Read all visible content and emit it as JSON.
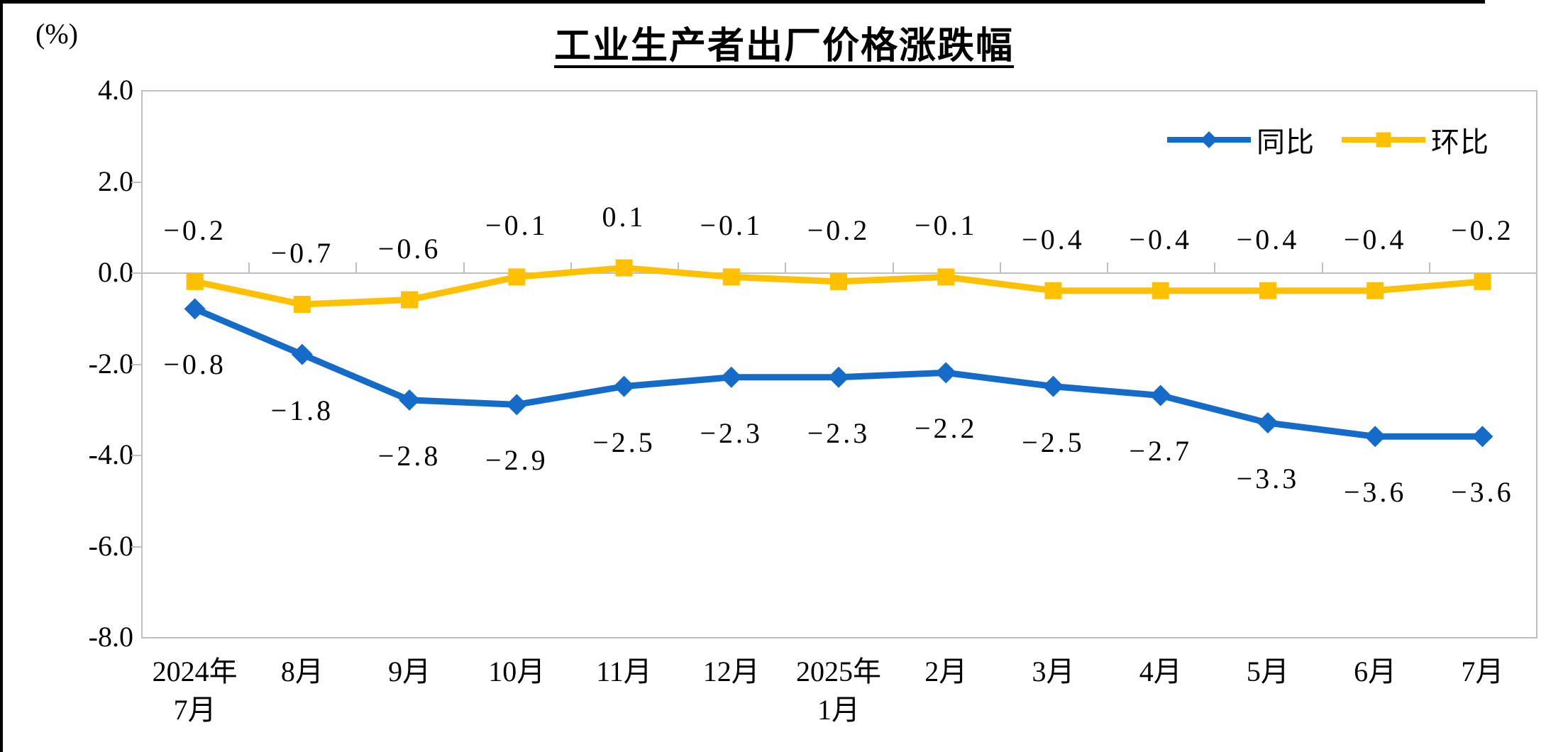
{
  "chart_data": {
    "type": "line",
    "title": "工业生产者出厂价格涨跌幅",
    "unit_label": "(%)",
    "categories": [
      "2024年\n7月",
      "8月",
      "9月",
      "10月",
      "11月",
      "12月",
      "2025年\n1月",
      "2月",
      "3月",
      "4月",
      "5月",
      "6月",
      "7月"
    ],
    "series": [
      {
        "name": "同比",
        "color": "#156CC8",
        "marker": "diamond",
        "values": [
          -0.8,
          -1.8,
          -2.8,
          -2.9,
          -2.5,
          -2.3,
          -2.3,
          -2.2,
          -2.5,
          -2.7,
          -3.3,
          -3.6,
          -3.6
        ],
        "labels": [
          "-0.8",
          "-1.8",
          "-2.8",
          "-2.9",
          "-2.5",
          "-2.3",
          "-2.3",
          "-2.2",
          "-2.5",
          "-2.7",
          "-3.3",
          "-3.6",
          "-3.6"
        ]
      },
      {
        "name": "环比",
        "color": "#FFC000",
        "marker": "square",
        "values": [
          -0.2,
          -0.7,
          -0.6,
          -0.1,
          0.1,
          -0.1,
          -0.2,
          -0.1,
          -0.4,
          -0.4,
          -0.4,
          -0.4,
          -0.2
        ],
        "labels": [
          "-0.2",
          "-0.7",
          "-0.6",
          "-0.1",
          "0.1",
          "-0.1",
          "-0.2",
          "-0.1",
          "-0.4",
          "-0.4",
          "-0.4",
          "-0.4",
          "-0.2"
        ]
      }
    ],
    "y_axis": {
      "min": -8.0,
      "max": 4.0,
      "tick_step": 2.0,
      "tick_labels": [
        "4.0",
        "2.0",
        "0.0",
        "-2.0",
        "-4.0",
        "-6.0",
        "-8.0"
      ]
    },
    "grid": "zero-line-only",
    "legend_position": "top-right",
    "axis_color": "#BFBFBF",
    "label_color": "#000000",
    "background": "#FFFFFF"
  }
}
